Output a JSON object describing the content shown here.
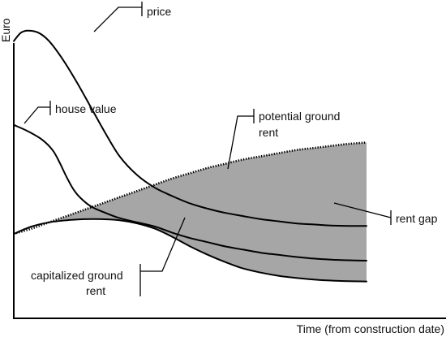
{
  "chart_data": {
    "type": "line",
    "title": "",
    "xlabel": "Time (from construction date)",
    "ylabel": "Euro",
    "grid": false,
    "legend": "none",
    "axis_ticks": false,
    "colors": {
      "lines": "#000000",
      "rent_gap_fill": "#a6a6a6"
    },
    "series": [
      {
        "name": "price",
        "style": "solid",
        "x": [
          0,
          2,
          4,
          7,
          10,
          14,
          18,
          22,
          26,
          30,
          35,
          40,
          45,
          50,
          55,
          60,
          65,
          70,
          75,
          80,
          85,
          90,
          95,
          100
        ],
        "y": [
          92,
          96,
          97,
          96,
          92,
          83,
          72,
          60,
          48,
          37,
          28,
          22,
          18,
          14.5,
          12,
          10,
          8.5,
          7,
          6,
          5,
          4.5,
          4,
          3.8,
          3.8
        ]
      },
      {
        "name": "house value",
        "style": "solid",
        "x": [
          0,
          4,
          8,
          11,
          13,
          15,
          17,
          19,
          22,
          26,
          30,
          35,
          40,
          45,
          50,
          55,
          60,
          65,
          70,
          75,
          80,
          85,
          90,
          95,
          100
        ],
        "y": [
          52,
          49,
          45,
          40,
          34,
          27,
          21,
          17,
          13,
          10,
          7.5,
          5.5,
          3.5,
          0.5,
          -2,
          -4,
          -6,
          -7.5,
          -9,
          -10,
          -11,
          -11.8,
          -12.3,
          -12.6,
          -12.8
        ]
      },
      {
        "name": "potential ground rent",
        "style": "dotted",
        "x": [
          0,
          5,
          10,
          15,
          20,
          25,
          30,
          35,
          40,
          45,
          50,
          55,
          60,
          65,
          70,
          75,
          80,
          85,
          90,
          95,
          100
        ],
        "y": [
          0,
          2.5,
          5.5,
          8.5,
          11.5,
          14.5,
          17.5,
          20.5,
          23.5,
          26.5,
          29,
          31.5,
          33.5,
          35.5,
          37,
          38.5,
          40,
          41,
          42,
          43,
          43.6
        ]
      },
      {
        "name": "capitalized ground rent",
        "style": "solid",
        "x": [
          0,
          5,
          10,
          15,
          20,
          25,
          30,
          35,
          40,
          45,
          50,
          55,
          60,
          65,
          70,
          75,
          80,
          85,
          90,
          95,
          100
        ],
        "y": [
          0,
          3.5,
          5.5,
          6.5,
          7,
          7,
          6.5,
          5,
          2.5,
          -1.5,
          -6,
          -10,
          -13.5,
          -16.5,
          -18.5,
          -20,
          -21,
          -21.8,
          -22.3,
          -22.6,
          -22.7
        ]
      }
    ],
    "shaded_region": {
      "name": "rent gap",
      "upper": "potential ground rent",
      "lower": "capitalized ground rent",
      "x_range": [
        10,
        100
      ]
    },
    "annotations": [
      {
        "text": "price",
        "target": "price"
      },
      {
        "text": "house value",
        "target": "house value"
      },
      {
        "text_lines": [
          "potential ground",
          "rent"
        ],
        "target": "potential ground rent"
      },
      {
        "text": "rent gap",
        "target": "rent gap"
      },
      {
        "text_lines": [
          "capitalized ground",
          "rent"
        ],
        "target": "capitalized ground rent"
      }
    ]
  }
}
